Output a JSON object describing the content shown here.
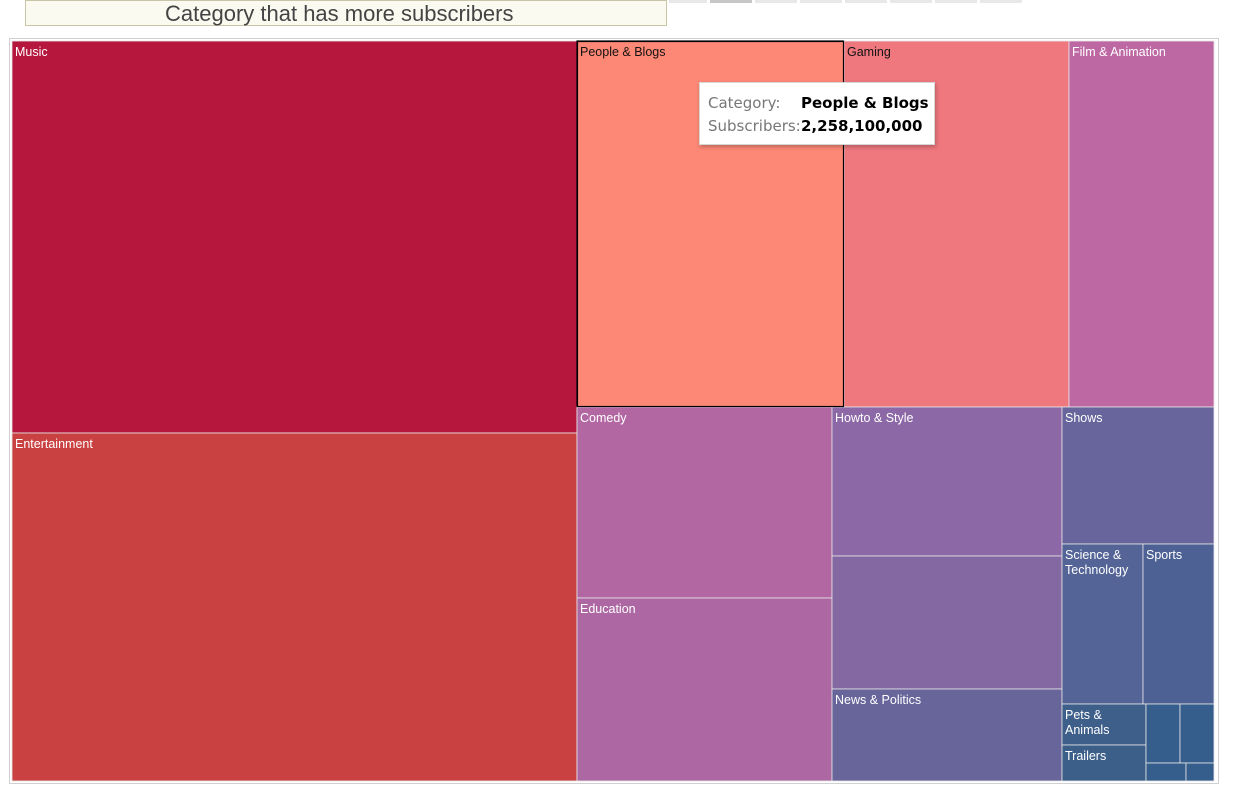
{
  "title": "Category that has more subscribers",
  "tooltip": {
    "category_key": "Category:",
    "category_value": "People & Blogs",
    "subscribers_key": "Subscribers:",
    "subscribers_value": "2,258,100,000"
  },
  "chart_data": {
    "type": "treemap",
    "title": "Category that has more subscribers",
    "highlighted": "People & Blogs",
    "nodes": [
      {
        "label": "Music",
        "color": "#b5173d"
      },
      {
        "label": "Entertainment",
        "color": "#ca4141"
      },
      {
        "label": "People & Blogs",
        "color": "#fe8876",
        "value": 2258100000
      },
      {
        "label": "Gaming",
        "color": "#ef787f"
      },
      {
        "label": "Film & Animation",
        "color": "#bd67a3"
      },
      {
        "label": "Comedy",
        "color": "#b267a2"
      },
      {
        "label": "Education",
        "color": "#ad68a3"
      },
      {
        "label": "Howto & Style",
        "color": "#8d68a6"
      },
      {
        "label": "",
        "color": "#8468a2"
      },
      {
        "label": "News & Politics",
        "color": "#68659a"
      },
      {
        "label": "Shows",
        "color": "#68659c"
      },
      {
        "label": "Science & Technology",
        "color": "#546496"
      },
      {
        "label": "Sports",
        "color": "#4e6194"
      },
      {
        "label": "Pets & Animals",
        "color": "#3f5f8b"
      },
      {
        "label": "Trailers",
        "color": "#3b5f89"
      },
      {
        "label": "",
        "color": "#355e8c"
      },
      {
        "label": "",
        "color": "#355e8c"
      },
      {
        "label": "",
        "color": "#355e8c"
      },
      {
        "label": "",
        "color": "#355e8c"
      }
    ]
  }
}
